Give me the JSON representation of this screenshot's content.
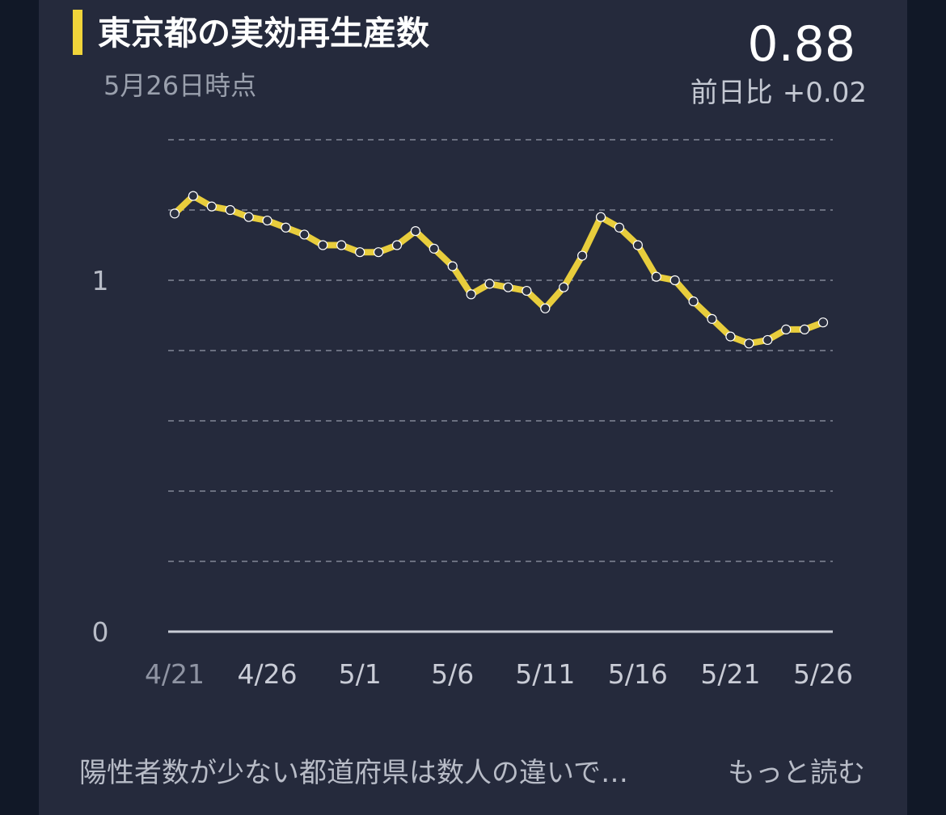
{
  "header": {
    "title": "東京都の実効再生産数",
    "as_of": "5月26日時点",
    "current_value": "0.88",
    "delta_label": "前日比",
    "delta_value": "+0.02"
  },
  "footer": {
    "summary": "陽性者数が少ない都道府県は数人の違いで…",
    "read_more": "もっと読む"
  },
  "colors": {
    "accent": "#f0d43a",
    "line": "#e8cd3c",
    "background": "#252a3c",
    "grid": "#6b7080"
  },
  "chart_data": {
    "type": "line",
    "title": "東京都の実効再生産数",
    "xlabel": "",
    "ylabel": "",
    "ylim": [
      0,
      1.4
    ],
    "yticks": [
      {
        "value": 0,
        "label": "0"
      },
      {
        "value": 1,
        "label": "1"
      }
    ],
    "grid": true,
    "x_tick_labels": [
      {
        "index": 0,
        "label": "4/21"
      },
      {
        "index": 5,
        "label": "4/26"
      },
      {
        "index": 10,
        "label": "5/1"
      },
      {
        "index": 15,
        "label": "5/6"
      },
      {
        "index": 20,
        "label": "5/11"
      },
      {
        "index": 25,
        "label": "5/16"
      },
      {
        "index": 30,
        "label": "5/21"
      },
      {
        "index": 35,
        "label": "5/26"
      }
    ],
    "x": [
      "4/21",
      "4/22",
      "4/23",
      "4/24",
      "4/25",
      "4/26",
      "4/27",
      "4/28",
      "4/29",
      "4/30",
      "5/1",
      "5/2",
      "5/3",
      "5/4",
      "5/5",
      "5/6",
      "5/7",
      "5/8",
      "5/9",
      "5/10",
      "5/11",
      "5/12",
      "5/13",
      "5/14",
      "5/15",
      "5/16",
      "5/17",
      "5/18",
      "5/19",
      "5/20",
      "5/21",
      "5/22",
      "5/23",
      "5/24",
      "5/25",
      "5/26"
    ],
    "values": [
      1.19,
      1.24,
      1.21,
      1.2,
      1.18,
      1.17,
      1.15,
      1.13,
      1.1,
      1.1,
      1.08,
      1.08,
      1.1,
      1.14,
      1.09,
      1.04,
      0.96,
      0.99,
      0.98,
      0.97,
      0.92,
      0.98,
      1.07,
      1.18,
      1.15,
      1.1,
      1.01,
      1.0,
      0.94,
      0.89,
      0.84,
      0.82,
      0.83,
      0.86,
      0.86,
      0.88
    ]
  }
}
